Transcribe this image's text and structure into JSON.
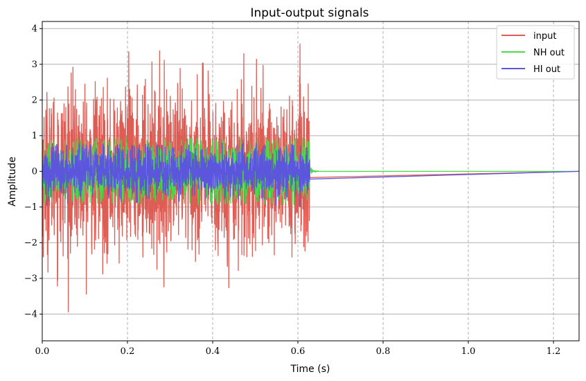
{
  "chart_data": {
    "type": "line",
    "title": "Input-output signals",
    "xlabel": "Time (s)",
    "ylabel": "Amplitude",
    "xlim": [
      0,
      1.26
    ],
    "ylim": [
      -4.75,
      4.2
    ],
    "xticks": [
      0.0,
      0.2,
      0.4,
      0.6,
      0.8,
      1.0,
      1.2
    ],
    "xtick_labels": [
      "0.0",
      "0.2",
      "0.4",
      "0.6",
      "0.8",
      "1.0",
      "1.2"
    ],
    "yticks": [
      -4,
      -3,
      -2,
      -1,
      0,
      1,
      2,
      3,
      4
    ],
    "ytick_labels": [
      "−4",
      "−3",
      "−2",
      "−1",
      "0",
      "1",
      "2",
      "3",
      "4"
    ],
    "grid": "on",
    "legend_position": "top-right",
    "signal_end_time": 0.628,
    "series": [
      {
        "name": "input",
        "color": "#dd5c54",
        "envelope_min": -4.4,
        "envelope_max": 3.8,
        "typical_abs": 1.8
      },
      {
        "name": "NH out",
        "color": "#4cd94c",
        "envelope_min": -0.95,
        "envelope_max": 0.95,
        "typical_abs": 0.7
      },
      {
        "name": "HI out",
        "color": "#5b56dc",
        "envelope_min": -1.0,
        "envelope_max": 0.8,
        "typical_abs": 0.55
      }
    ]
  }
}
